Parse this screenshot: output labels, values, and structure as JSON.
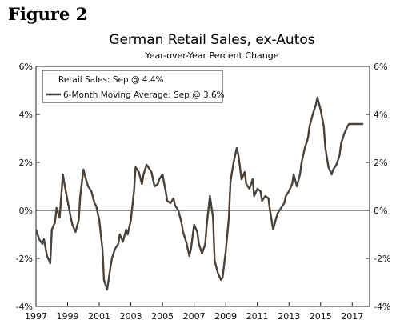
{
  "figure_label": "Figure 2",
  "chart_data": {
    "type": "line",
    "title": "German Retail Sales, ex-Autos",
    "subtitle": "Year-over-Year Percent Change",
    "ylim": [
      -4,
      6
    ],
    "y_ticks": [
      -4,
      -2,
      0,
      2,
      4,
      6
    ],
    "y_tick_labels": [
      "-4%",
      "-2%",
      "0%",
      "2%",
      "4%",
      "6%"
    ],
    "xlim": [
      1997,
      2018.1
    ],
    "x_ticks": [
      1997,
      1999,
      2001,
      2003,
      2005,
      2007,
      2009,
      2011,
      2013,
      2015,
      2017
    ],
    "x_tick_labels": [
      "1997",
      "1999",
      "2001",
      "2003",
      "2005",
      "2007",
      "2009",
      "2011",
      "2013",
      "2015",
      "2017"
    ],
    "legend_position": "top-left",
    "legend": [
      {
        "label": "Retail Sales: Sep @ 4.4%",
        "marker": "none"
      },
      {
        "label": "6-Month Moving Average: Sep @ 3.6%",
        "marker": "line"
      }
    ],
    "reference_line": 0,
    "series": [
      {
        "name": "6-Month Moving Average",
        "color": "#4a423a",
        "x": [
          1997.0,
          1997.2,
          1997.4,
          1997.5,
          1997.7,
          1997.9,
          1998.0,
          1998.2,
          1998.3,
          1998.5,
          1998.7,
          1998.8,
          1999.0,
          1999.2,
          1999.3,
          1999.5,
          1999.7,
          1999.8,
          2000.0,
          2000.2,
          2000.3,
          2000.5,
          2000.7,
          2000.8,
          2001.0,
          2001.2,
          2001.3,
          2001.5,
          2001.7,
          2001.8,
          2002.0,
          2002.2,
          2002.3,
          2002.5,
          2002.7,
          2002.8,
          2003.0,
          2003.2,
          2003.3,
          2003.5,
          2003.7,
          2003.8,
          2004.0,
          2004.2,
          2004.3,
          2004.5,
          2004.7,
          2004.8,
          2005.0,
          2005.2,
          2005.3,
          2005.5,
          2005.7,
          2005.8,
          2006.0,
          2006.2,
          2006.3,
          2006.5,
          2006.7,
          2006.8,
          2007.0,
          2007.2,
          2007.3,
          2007.5,
          2007.7,
          2007.8,
          2008.0,
          2008.2,
          2008.3,
          2008.5,
          2008.7,
          2008.8,
          2009.0,
          2009.2,
          2009.3,
          2009.5,
          2009.7,
          2009.8,
          2010.0,
          2010.2,
          2010.3,
          2010.5,
          2010.7,
          2010.8,
          2011.0,
          2011.2,
          2011.3,
          2011.5,
          2011.7,
          2011.8,
          2012.0,
          2012.2,
          2012.3,
          2012.5,
          2012.7,
          2012.8,
          2013.0,
          2013.2,
          2013.3,
          2013.5,
          2013.7,
          2013.8,
          2014.0,
          2014.2,
          2014.3,
          2014.5,
          2014.7,
          2014.8,
          2015.0,
          2015.2,
          2015.3,
          2015.5,
          2015.7,
          2015.8,
          2016.0,
          2016.2,
          2016.3,
          2016.5,
          2016.7,
          2016.8,
          2017.0,
          2017.2,
          2017.3,
          2017.5,
          2017.7
        ],
        "values": [
          -0.8,
          -1.2,
          -1.4,
          -1.2,
          -1.9,
          -2.2,
          -0.8,
          -0.5,
          0.1,
          -0.3,
          1.5,
          1.1,
          0.4,
          -0.3,
          -0.6,
          -0.9,
          -0.4,
          0.6,
          1.7,
          1.2,
          1.0,
          0.8,
          0.3,
          0.2,
          -0.4,
          -1.6,
          -2.9,
          -3.3,
          -2.4,
          -2.0,
          -1.6,
          -1.4,
          -1.0,
          -1.3,
          -0.8,
          -1.0,
          -0.4,
          0.8,
          1.8,
          1.6,
          1.1,
          1.5,
          1.9,
          1.7,
          1.6,
          1.0,
          1.1,
          1.3,
          1.5,
          0.8,
          0.4,
          0.3,
          0.5,
          0.2,
          0.0,
          -0.5,
          -0.9,
          -1.3,
          -1.9,
          -1.6,
          -0.6,
          -0.9,
          -1.4,
          -1.8,
          -1.4,
          -0.6,
          0.6,
          -0.3,
          -2.1,
          -2.6,
          -2.9,
          -2.8,
          -1.7,
          -0.3,
          1.2,
          2.0,
          2.6,
          2.3,
          1.3,
          1.6,
          1.1,
          0.9,
          1.3,
          0.6,
          0.9,
          0.8,
          0.4,
          0.6,
          0.5,
          0.0,
          -0.8,
          -0.3,
          -0.1,
          0.1,
          0.3,
          0.6,
          0.8,
          1.1,
          1.5,
          1.0,
          1.5,
          2.0,
          2.6,
          3.0,
          3.5,
          4.0,
          4.4,
          4.7,
          4.2,
          3.5,
          2.6,
          1.8,
          1.5,
          1.7,
          1.9,
          2.3,
          2.8,
          3.2,
          3.5,
          3.6,
          3.6,
          3.6,
          3.6,
          3.6,
          3.6
        ]
      }
    ]
  }
}
